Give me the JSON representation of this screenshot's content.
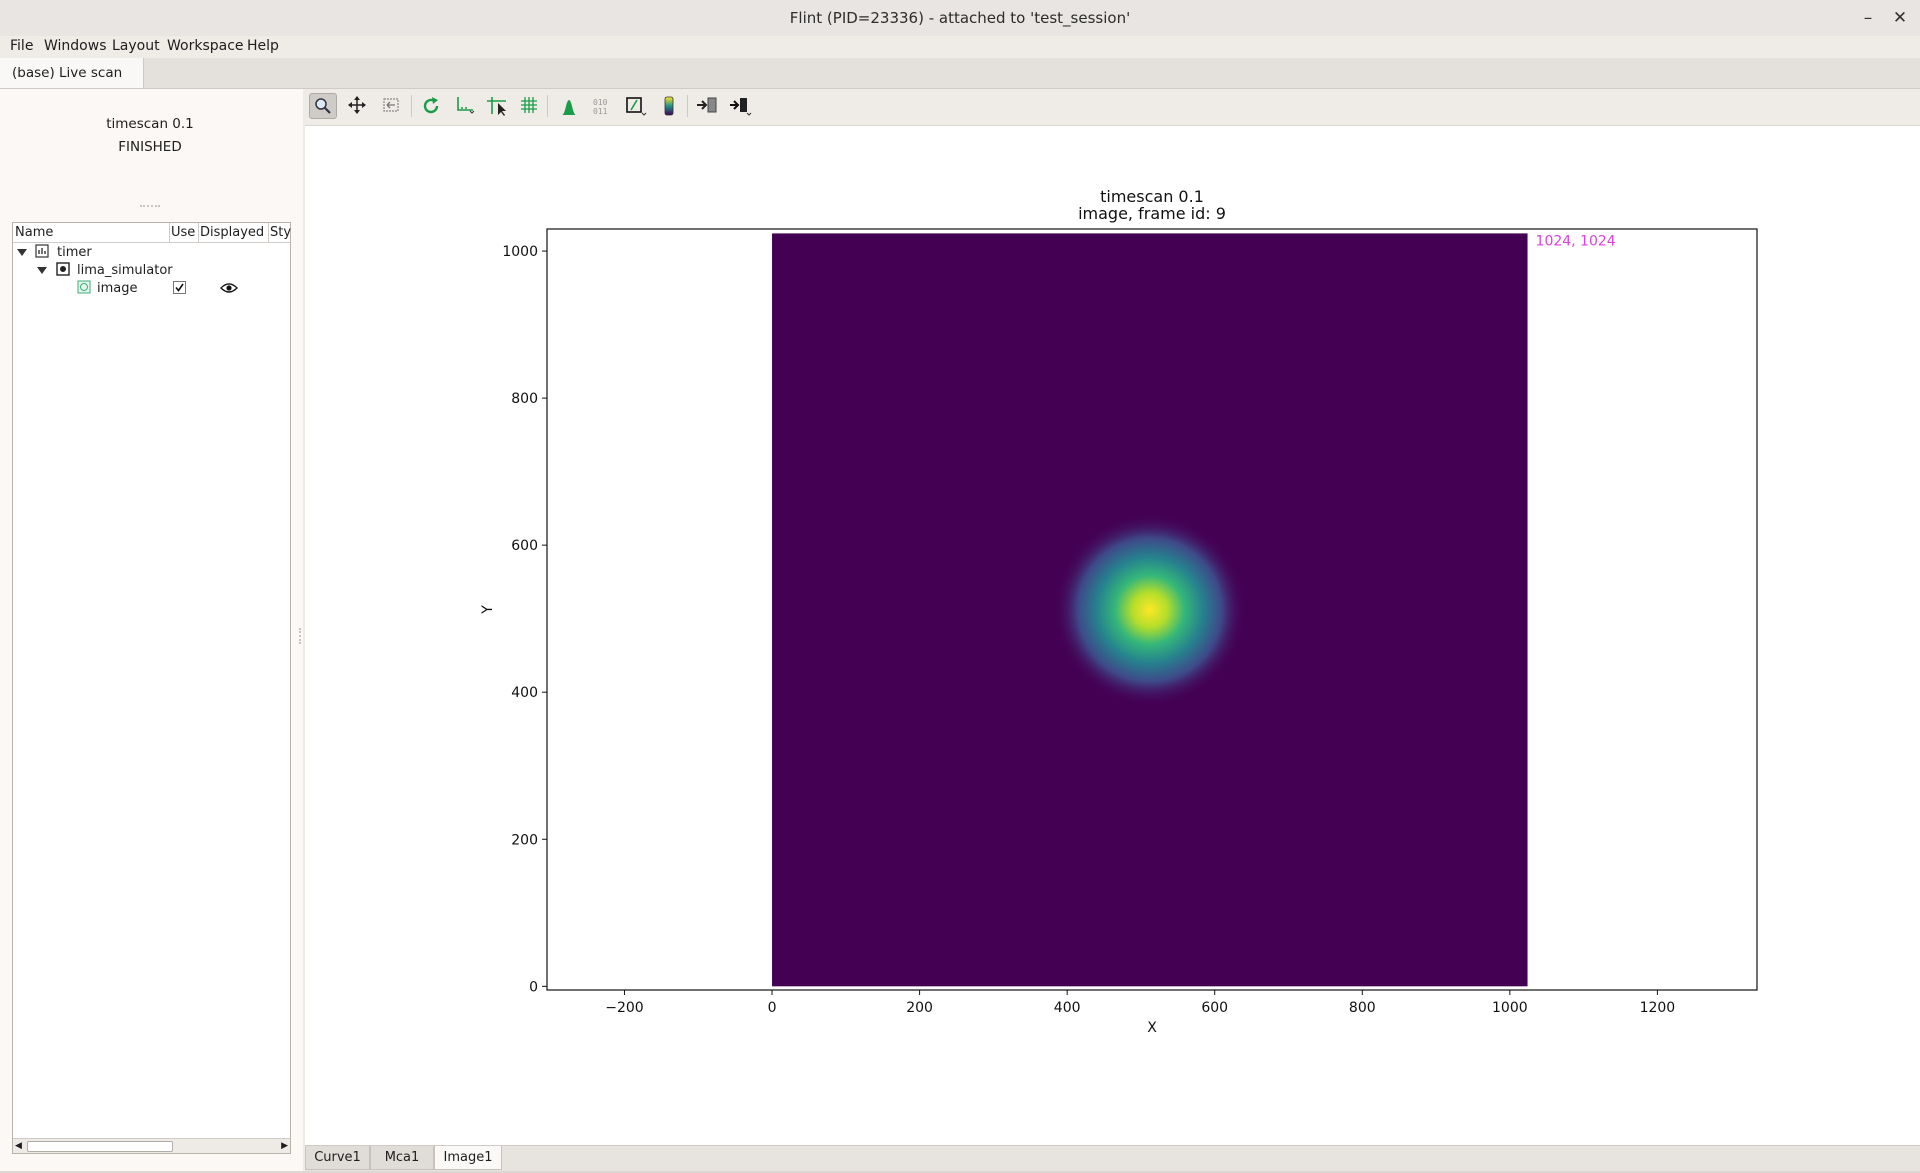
{
  "window": {
    "title": "Flint (PID=23336) - attached to 'test_session'",
    "minimize_icon": "minimize-icon",
    "close_icon": "close-icon"
  },
  "menu": [
    "File",
    "Windows",
    "Layout",
    "Workspace",
    "Help"
  ],
  "workspace_tab": "(base) Live scan",
  "scan": {
    "title": "timescan 0.1",
    "state": "FINISHED"
  },
  "tree": {
    "columns": [
      "Name",
      "Use",
      "Displayed",
      "Sty"
    ],
    "rows": [
      {
        "label": "timer",
        "icon": "timer-icon",
        "expanded": true,
        "level": 0
      },
      {
        "label": "lima_simulator",
        "icon": "device-icon",
        "expanded": true,
        "level": 1
      },
      {
        "label": "image",
        "icon": "image-icon",
        "level": 2,
        "use_checked": true,
        "displayed": true
      }
    ]
  },
  "toolbar": [
    "zoom-icon",
    "pan-icon",
    "zoom-back-icon",
    "reset-zoom-icon",
    "axis-options-icon",
    "crosshair-icon",
    "grid-icon",
    "histogram-icon",
    "data-icon",
    "aspect-ratio-icon",
    "colorbar-icon",
    "export-icon",
    "export-menu-icon"
  ],
  "plot": {
    "title_line1": "timescan 0.1",
    "title_line2": "image, frame id: 9",
    "xlabel": "X",
    "ylabel": "Y",
    "xticks": [
      "−200",
      "0",
      "200",
      "400",
      "600",
      "800",
      "1000",
      "1200"
    ],
    "yticks": [
      "0",
      "200",
      "400",
      "600",
      "800",
      "1000"
    ],
    "marker_label": "1024, 1024",
    "marker_color": "#e040e0",
    "image_bg_color": "#440154",
    "colormap": "viridis"
  },
  "chart_data": {
    "type": "heatmap",
    "title": "timescan 0.1\nimage, frame id: 9",
    "xlabel": "X",
    "ylabel": "Y",
    "xlim": [
      -305,
      1335
    ],
    "ylim": [
      -5,
      1030
    ],
    "image_extent": {
      "x": [
        0,
        1024
      ],
      "y": [
        0,
        1024
      ]
    },
    "image_size": [
      1024,
      1024
    ],
    "peak": {
      "x": 512,
      "y": 512,
      "shape": "gaussian",
      "sigma": 60
    },
    "colormap": "viridis"
  },
  "bottom_tabs": [
    "Curve1",
    "Mca1",
    "Image1"
  ],
  "selected_tab": "Image1"
}
